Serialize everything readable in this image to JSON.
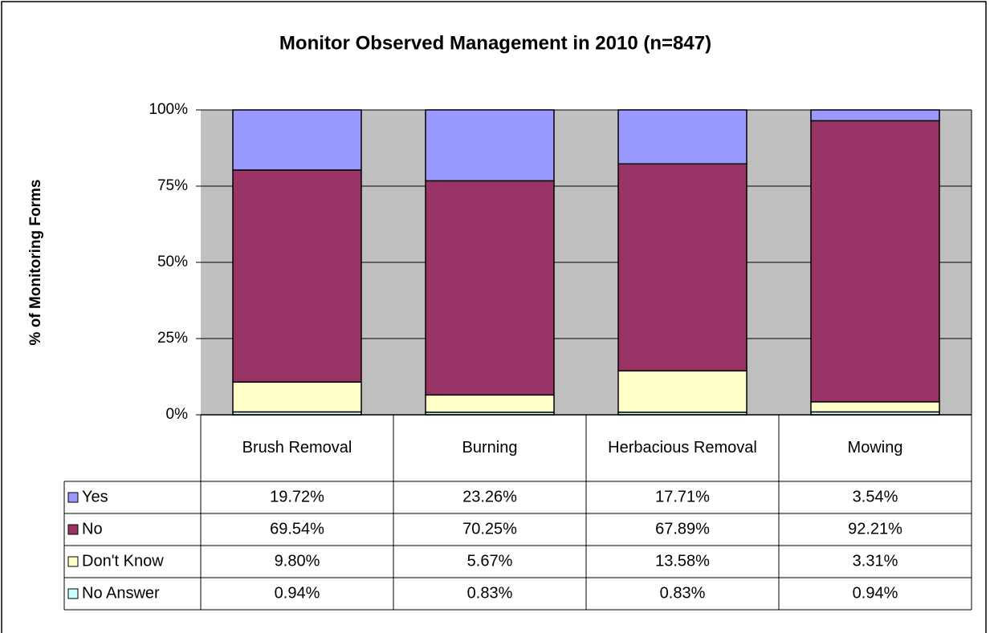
{
  "chart_data": {
    "type": "stacked_bar",
    "title": "Monitor Observed Management in 2010 (n=847)",
    "y_label": "% of Monitoring Forms",
    "categories": [
      "Brush Removal",
      "Burning",
      "Herbacious Removal",
      "Mowing"
    ],
    "series": [
      {
        "name": "Yes",
        "color": "#9999ff",
        "values": [
          19.72,
          23.26,
          17.71,
          3.54
        ],
        "value_labels": [
          "19.72%",
          "23.26%",
          "17.71%",
          "3.54%"
        ]
      },
      {
        "name": "No",
        "color": "#993366",
        "values": [
          69.54,
          70.25,
          67.89,
          92.21
        ],
        "value_labels": [
          "69.54%",
          "70.25%",
          "67.89%",
          "92.21%"
        ]
      },
      {
        "name": "Don't Know",
        "color": "#ffffcc",
        "values": [
          9.8,
          5.67,
          13.58,
          3.31
        ],
        "value_labels": [
          "9.80%",
          "5.67%",
          "13.58%",
          "3.31%"
        ]
      },
      {
        "name": "No Answer",
        "color": "#ccffff",
        "values": [
          0.94,
          0.83,
          0.83,
          0.94
        ],
        "value_labels": [
          "0.94%",
          "0.83%",
          "0.83%",
          "0.94%"
        ]
      }
    ],
    "ylim": [
      0,
      100
    ],
    "yticks": [
      {
        "value": 0,
        "label": "0%"
      },
      {
        "value": 25,
        "label": "25%"
      },
      {
        "value": 50,
        "label": "50%"
      },
      {
        "value": 75,
        "label": "75%"
      },
      {
        "value": 100,
        "label": "100%"
      }
    ],
    "grid": true,
    "plot_background": "#c0c0c0"
  }
}
